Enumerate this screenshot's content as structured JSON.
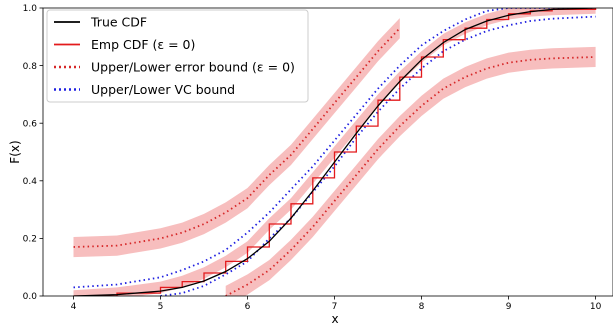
{
  "chart_data": {
    "type": "line",
    "title": "",
    "xlabel": "x",
    "ylabel": "F(x)",
    "xlim": [
      3.65,
      10.2
    ],
    "ylim": [
      0.0,
      1.0
    ],
    "x_ticks": [
      4,
      5,
      6,
      7,
      8,
      9,
      10
    ],
    "x_tick_labels": [
      "4",
      "5",
      "6",
      "7",
      "8",
      "9",
      "10"
    ],
    "y_ticks": [
      0.0,
      0.2,
      0.4,
      0.6,
      0.8,
      1.0
    ],
    "y_tick_labels": [
      "0.0",
      "0.2",
      "0.4",
      "0.6",
      "0.8",
      "1.0"
    ],
    "grid": false,
    "legend_position": "top-left",
    "colors": {
      "true_cdf": "#000000",
      "emp_cdf": "#e31a1c",
      "error_bound": "#d62728",
      "vc_bound": "#1f1fe0",
      "shade": "#f4a3a3"
    },
    "series": [
      {
        "name": "True CDF",
        "style": "solid",
        "x": [
          4.0,
          4.5,
          5.0,
          5.25,
          5.5,
          5.75,
          6.0,
          6.25,
          6.5,
          6.75,
          7.0,
          7.25,
          7.5,
          7.75,
          8.0,
          8.25,
          8.5,
          8.75,
          9.0,
          9.25,
          9.5,
          10.0
        ],
        "y": [
          0.0,
          0.005,
          0.017,
          0.03,
          0.052,
          0.085,
          0.13,
          0.19,
          0.27,
          0.365,
          0.465,
          0.565,
          0.66,
          0.745,
          0.82,
          0.88,
          0.925,
          0.955,
          0.975,
          0.987,
          0.995,
          1.0
        ]
      },
      {
        "name": "Emp CDF (ε = 0)",
        "style": "step",
        "x": [
          4.0,
          4.5,
          5.0,
          5.25,
          5.5,
          5.75,
          6.0,
          6.25,
          6.5,
          6.75,
          7.0,
          7.25,
          7.5,
          7.75,
          8.0,
          8.25,
          8.5,
          8.75,
          9.0,
          9.25,
          9.5,
          10.0
        ],
        "y": [
          0.0,
          0.01,
          0.03,
          0.05,
          0.08,
          0.12,
          0.17,
          0.25,
          0.32,
          0.41,
          0.5,
          0.59,
          0.68,
          0.76,
          0.83,
          0.89,
          0.93,
          0.96,
          0.98,
          0.99,
          0.995,
          1.0
        ]
      },
      {
        "name": "Upper/Lower error bound (ε = 0)",
        "style": "dotted",
        "upper": {
          "x": [
            4.0,
            4.5,
            5.0,
            5.25,
            5.5,
            5.75,
            6.0,
            6.25,
            6.5,
            6.75,
            7.0,
            7.25,
            7.5,
            7.75
          ],
          "y": [
            0.17,
            0.175,
            0.2,
            0.22,
            0.25,
            0.29,
            0.34,
            0.42,
            0.49,
            0.58,
            0.67,
            0.76,
            0.85,
            0.93
          ]
        },
        "lower": {
          "x": [
            5.75,
            6.0,
            6.25,
            6.5,
            6.75,
            7.0,
            7.25,
            7.5,
            7.75,
            8.0,
            8.25,
            8.5,
            8.75,
            9.0,
            9.25,
            9.5,
            10.0
          ],
          "y": [
            0.0,
            0.04,
            0.09,
            0.16,
            0.24,
            0.33,
            0.42,
            0.51,
            0.59,
            0.66,
            0.72,
            0.76,
            0.79,
            0.81,
            0.82,
            0.825,
            0.83
          ]
        }
      },
      {
        "name": "Upper/Lower VC bound",
        "style": "dotted",
        "upper": {
          "x": [
            4.0,
            4.5,
            5.0,
            5.25,
            5.5,
            5.75,
            6.0,
            6.25,
            6.5,
            6.75,
            7.0,
            7.25,
            7.5,
            7.75,
            8.0,
            8.25,
            8.5,
            8.75,
            9.0,
            9.5,
            10.0
          ],
          "y": [
            0.03,
            0.04,
            0.065,
            0.09,
            0.12,
            0.16,
            0.22,
            0.29,
            0.37,
            0.45,
            0.54,
            0.63,
            0.72,
            0.8,
            0.87,
            0.92,
            0.96,
            0.99,
            1.0,
            1.0,
            1.0
          ]
        },
        "lower": {
          "x": [
            5.0,
            5.25,
            5.5,
            5.75,
            6.0,
            6.25,
            6.5,
            6.75,
            7.0,
            7.25,
            7.5,
            7.75,
            8.0,
            8.25,
            8.5,
            8.75,
            9.0,
            9.25,
            9.5,
            10.0
          ],
          "y": [
            0.0,
            0.01,
            0.035,
            0.075,
            0.12,
            0.2,
            0.27,
            0.36,
            0.45,
            0.55,
            0.64,
            0.72,
            0.79,
            0.85,
            0.89,
            0.92,
            0.94,
            0.955,
            0.963,
            0.97
          ]
        }
      }
    ],
    "bands": [
      {
        "around": "upper_error_bound",
        "halfwidth": 0.035
      },
      {
        "around": "lower_error_bound",
        "halfwidth": 0.035
      },
      {
        "around": "emp_cdf",
        "halfwidth": 0.02
      }
    ],
    "legend": [
      {
        "label": "True CDF",
        "color_key": "true_cdf",
        "style": "solid"
      },
      {
        "label": "Emp CDF (ε = 0)",
        "color_key": "emp_cdf",
        "style": "solid"
      },
      {
        "label": "Upper/Lower error bound (ε = 0)",
        "color_key": "error_bound",
        "style": "dotted"
      },
      {
        "label": "Upper/Lower VC bound",
        "color_key": "vc_bound",
        "style": "dotted"
      }
    ]
  }
}
